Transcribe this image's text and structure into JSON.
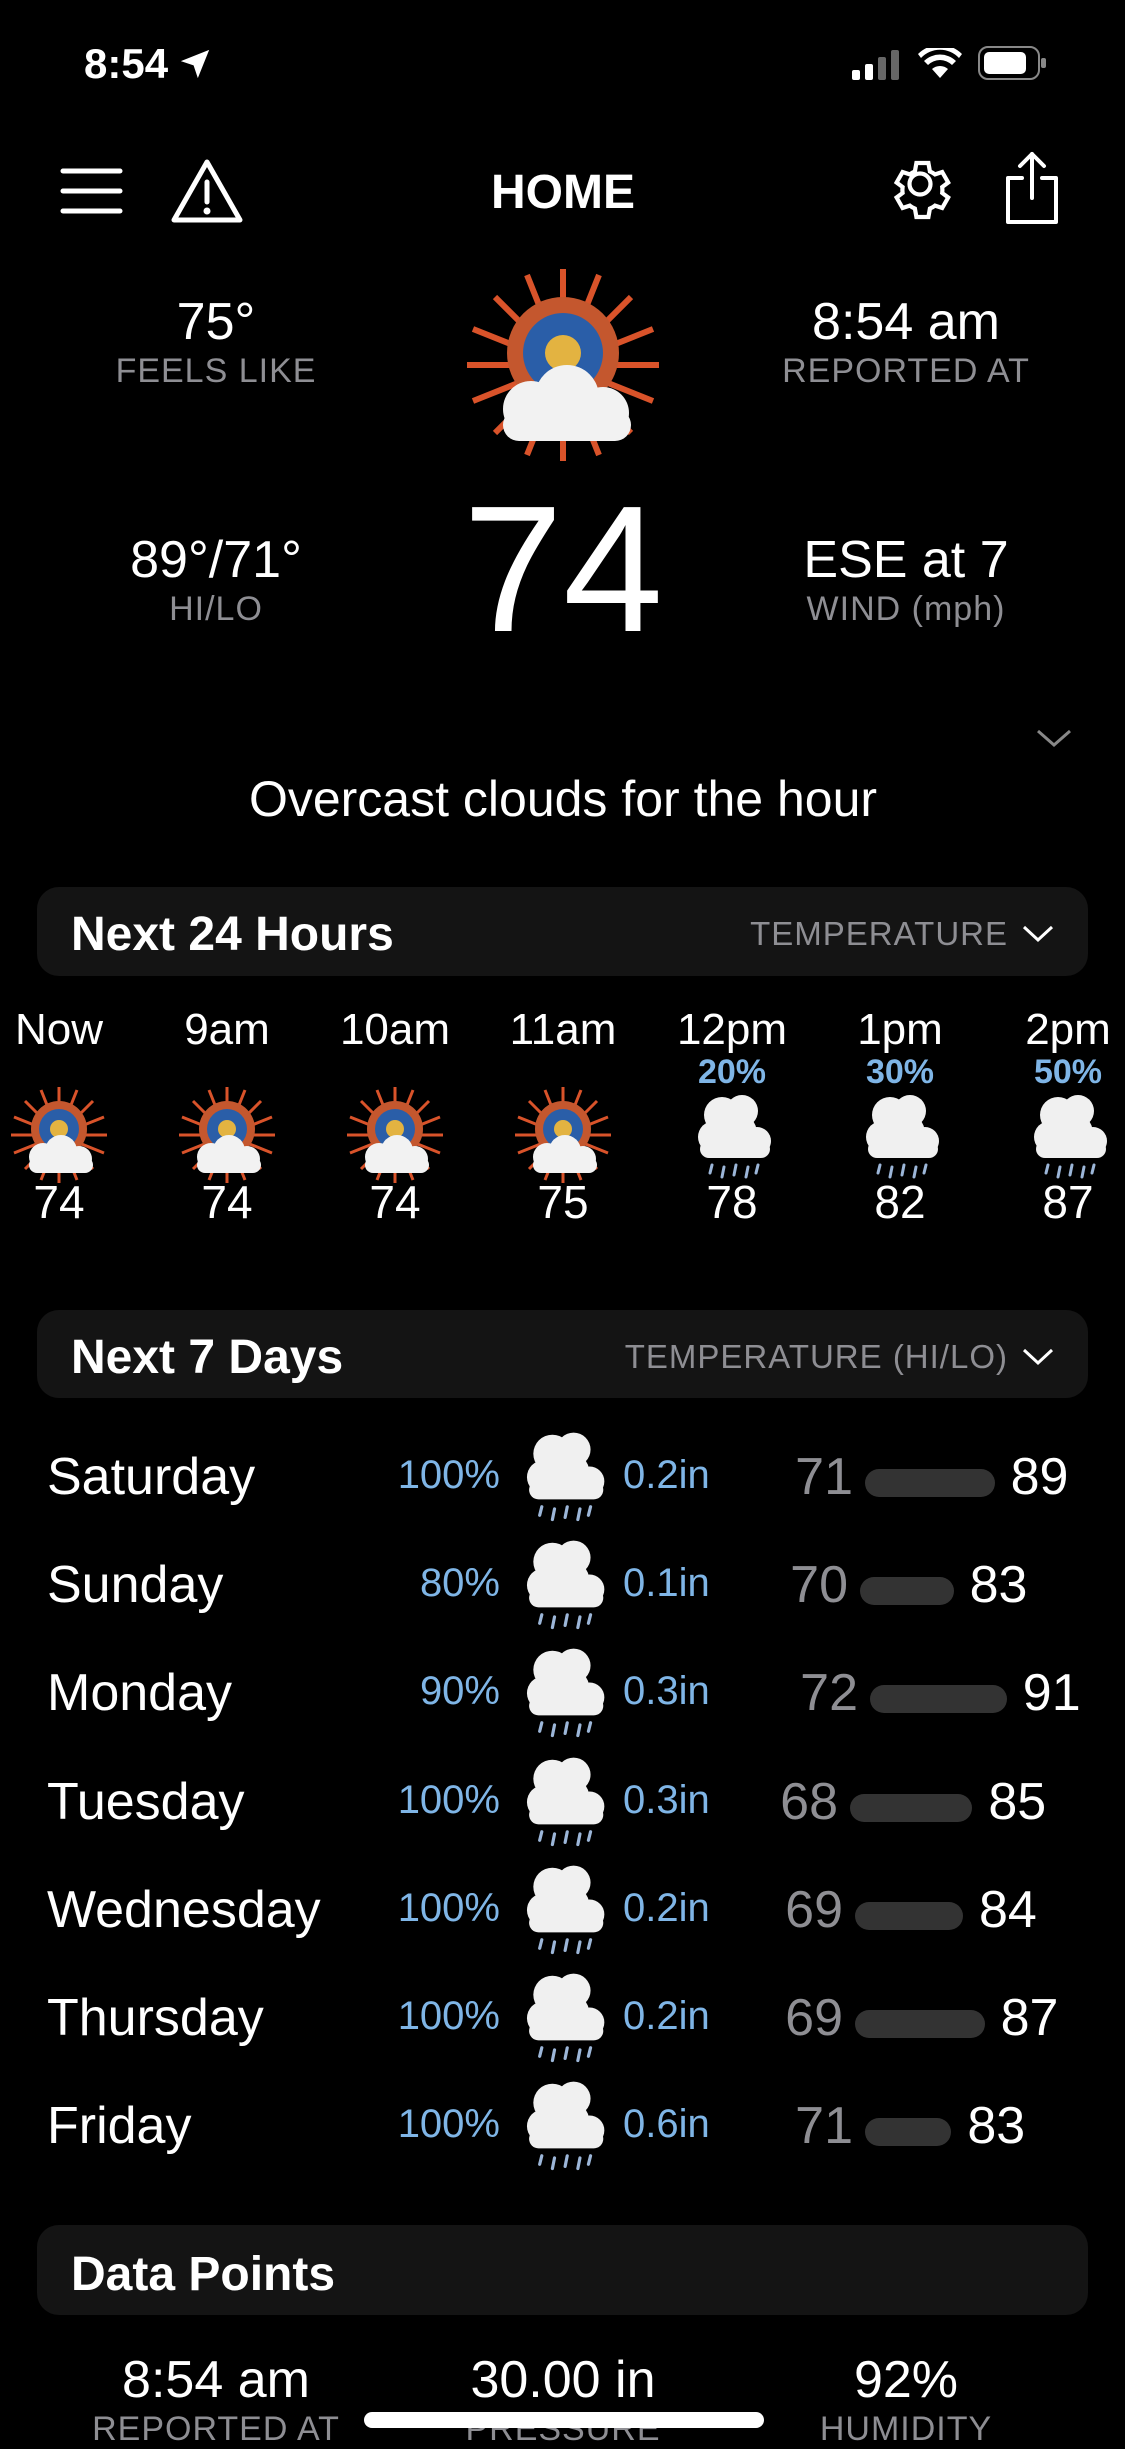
{
  "status_bar": {
    "time": "8:54"
  },
  "header": {
    "title": "HOME"
  },
  "current": {
    "feels_like": "75°",
    "feels_like_label": "FEELS LIKE",
    "reported_at": "8:54 am",
    "reported_at_label": "REPORTED AT",
    "hilo": "89°/71°",
    "hilo_label": "HI/LO",
    "temp": "74",
    "wind": "ESE at 7",
    "wind_label": "WIND (mph)",
    "summary": "Overcast clouds for the hour"
  },
  "hourly": {
    "title": "Next 24 Hours",
    "selector": "TEMPERATURE",
    "items": [
      {
        "time": "Now",
        "precip": "",
        "temp": "74",
        "icon": "sun-clouds"
      },
      {
        "time": "9am",
        "precip": "",
        "temp": "74",
        "icon": "sun-clouds"
      },
      {
        "time": "10am",
        "precip": "",
        "temp": "74",
        "icon": "sun-clouds"
      },
      {
        "time": "11am",
        "precip": "",
        "temp": "75",
        "icon": "sun-clouds"
      },
      {
        "time": "12pm",
        "precip": "20%",
        "temp": "78",
        "icon": "rain-clouds"
      },
      {
        "time": "1pm",
        "precip": "30%",
        "temp": "82",
        "icon": "rain-clouds"
      },
      {
        "time": "2pm",
        "precip": "50%",
        "temp": "87",
        "icon": "rain-clouds"
      }
    ]
  },
  "daily": {
    "title": "Next 7 Days",
    "selector": "TEMPERATURE (HI/LO)",
    "items": [
      {
        "day": "Saturday",
        "precip": "100%",
        "amount": "0.2in",
        "lo": 71,
        "hi": 89
      },
      {
        "day": "Sunday",
        "precip": "80%",
        "amount": "0.1in",
        "lo": 70,
        "hi": 83
      },
      {
        "day": "Monday",
        "precip": "90%",
        "amount": "0.3in",
        "lo": 72,
        "hi": 91
      },
      {
        "day": "Tuesday",
        "precip": "100%",
        "amount": "0.3in",
        "lo": 68,
        "hi": 85
      },
      {
        "day": "Wednesday",
        "precip": "100%",
        "amount": "0.2in",
        "lo": 69,
        "hi": 84
      },
      {
        "day": "Thursday",
        "precip": "100%",
        "amount": "0.2in",
        "lo": 69,
        "hi": 87
      },
      {
        "day": "Friday",
        "precip": "100%",
        "amount": "0.6in",
        "lo": 71,
        "hi": 83
      }
    ]
  },
  "data_points": {
    "title": "Data Points",
    "items": [
      {
        "value": "8:54 am",
        "label": "REPORTED AT"
      },
      {
        "value": "30.00 in",
        "label": "PRESSURE"
      },
      {
        "value": "92%",
        "label": "HUMIDITY"
      }
    ]
  },
  "colors": {
    "accent_precip": "#7fb5e6",
    "card": "#141414",
    "muted": "#8e8e93"
  }
}
